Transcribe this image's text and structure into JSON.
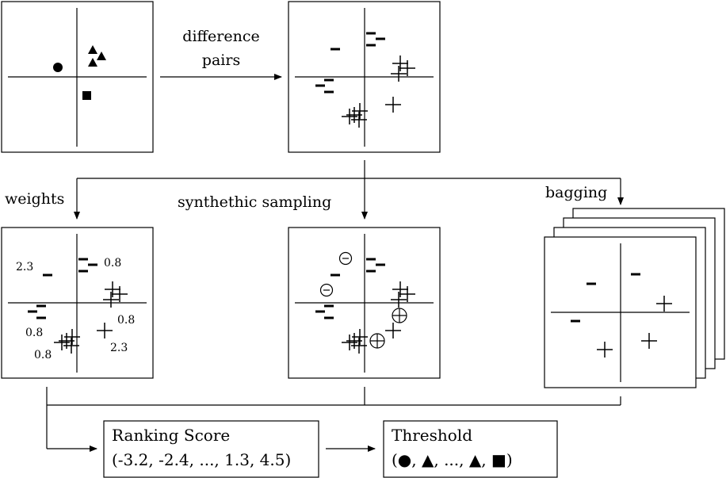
{
  "labels": {
    "difference_line1": "difference",
    "difference_line2": "pairs",
    "weights": "weights",
    "synthetic_sampling": "synthethic sampling",
    "bagging": "bagging"
  },
  "weights_values": [
    "2.3",
    "0.8",
    "0.8",
    "0.8",
    "2.3",
    "0.8"
  ],
  "ranking": {
    "title": "Ranking Score",
    "values": "(-3.2, -2.4, ..., 1.3, 4.5)"
  },
  "threshold": {
    "title": "Threshold",
    "values": "(●, ▲, ..., ▲, ■)"
  },
  "marker_shapes": [
    "circle",
    "triangle",
    "square",
    "minus",
    "plus",
    "circled-minus",
    "circled-plus"
  ]
}
